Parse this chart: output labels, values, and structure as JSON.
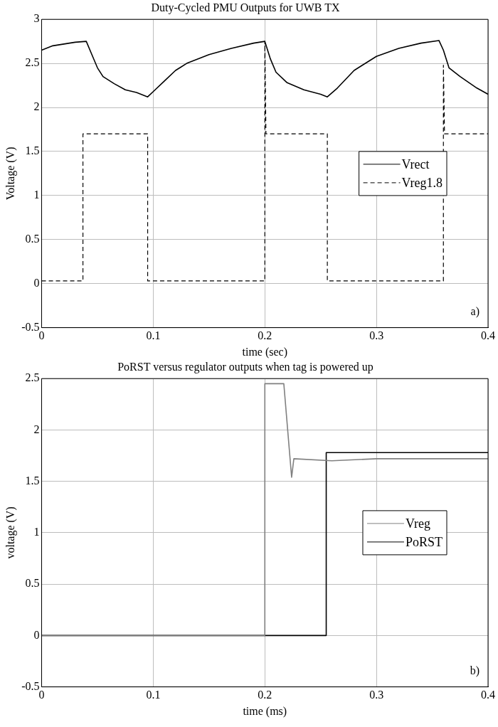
{
  "chart_data": [
    {
      "type": "line",
      "title": "Duty-Cycled PMU Outputs for UWB TX",
      "xlabel": "time (sec)",
      "ylabel": "Voltage (V)",
      "xlim": [
        0,
        0.4
      ],
      "xticks": [
        0,
        0.1,
        0.2,
        0.3,
        0.4
      ],
      "ylim": [
        -0.5,
        3
      ],
      "yticks": [
        -0.5,
        0,
        0.5,
        1,
        1.5,
        2,
        2.5,
        3
      ],
      "grid": true,
      "legend": "right",
      "marker": "none",
      "annotations": [
        "a)"
      ],
      "series": [
        {
          "name": "Vrect",
          "color": "#000000",
          "line_style": "solid",
          "x": [
            0,
            0.01,
            0.02,
            0.03,
            0.04,
            0.045,
            0.05,
            0.055,
            0.065,
            0.075,
            0.085,
            0.095,
            0.1,
            0.11,
            0.12,
            0.13,
            0.15,
            0.17,
            0.19,
            0.2,
            0.205,
            0.21,
            0.22,
            0.235,
            0.25,
            0.256,
            0.265,
            0.28,
            0.3,
            0.32,
            0.34,
            0.356,
            0.36,
            0.365,
            0.375,
            0.39,
            0.4
          ],
          "values": [
            2.65,
            2.7,
            2.72,
            2.74,
            2.75,
            2.6,
            2.45,
            2.35,
            2.27,
            2.2,
            2.17,
            2.12,
            2.18,
            2.3,
            2.42,
            2.5,
            2.6,
            2.67,
            2.73,
            2.75,
            2.55,
            2.4,
            2.28,
            2.2,
            2.15,
            2.12,
            2.22,
            2.42,
            2.58,
            2.67,
            2.73,
            2.76,
            2.65,
            2.45,
            2.35,
            2.22,
            2.15
          ]
        },
        {
          "name": "Vreg1.8",
          "color": "#000000",
          "line_style": "dashed",
          "x": [
            0,
            0.037,
            0.037,
            0.095,
            0.095,
            0.2,
            0.2,
            0.201,
            0.256,
            0.256,
            0.36,
            0.36,
            0.361,
            0.4
          ],
          "values": [
            0.03,
            0.03,
            1.7,
            1.7,
            0.03,
            0.03,
            2.75,
            1.7,
            1.7,
            0.03,
            0.03,
            2.48,
            1.7,
            1.7
          ]
        }
      ]
    },
    {
      "type": "line",
      "title": "PoRST versus regulator outputs when tag is powered up",
      "xlabel": "time (ms)",
      "ylabel": "voltage (V)",
      "xlim": [
        0,
        0.4
      ],
      "xticks": [
        0,
        0.1,
        0.2,
        0.3,
        0.4
      ],
      "ylim": [
        -0.5,
        2.5
      ],
      "yticks": [
        -0.5,
        0,
        0.5,
        1,
        1.5,
        2,
        2.5
      ],
      "grid": true,
      "legend": "right",
      "marker": "none",
      "annotations": [
        "b)"
      ],
      "series": [
        {
          "name": "Vreg",
          "color": "#808080",
          "line_style": "solid",
          "x": [
            0,
            0.2,
            0.2,
            0.217,
            0.224,
            0.226,
            0.26,
            0.3,
            0.4
          ],
          "values": [
            0,
            0,
            2.45,
            2.45,
            1.54,
            1.72,
            1.7,
            1.72,
            1.72
          ]
        },
        {
          "name": "PoRST",
          "color": "#000000",
          "line_style": "solid",
          "x": [
            0,
            0.1,
            0.2,
            0.255,
            0.255,
            0.3,
            0.35,
            0.4
          ],
          "values": [
            0,
            0,
            0,
            0,
            1.78,
            1.78,
            1.78,
            1.78
          ]
        }
      ]
    }
  ]
}
